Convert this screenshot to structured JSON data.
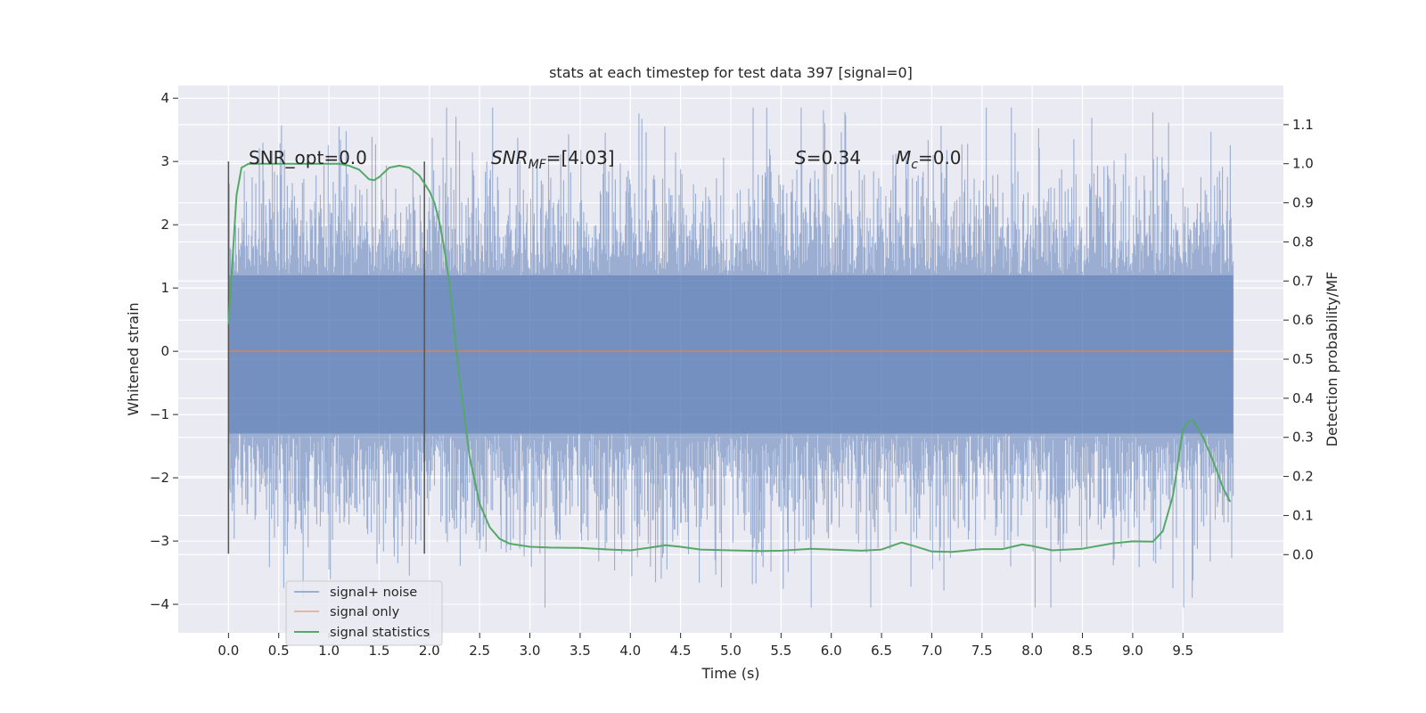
{
  "chart_data": {
    "type": "line",
    "title": "stats at each timestep for test data 397 [signal=0]",
    "xlabel": "Time (s)",
    "ylabel": "Whitened strain",
    "ylabel_right": "Detection probability/MF",
    "xlim": [
      -0.5,
      10.5
    ],
    "ylim": [
      -4.45,
      4.2
    ],
    "ylim_right": [
      -0.2,
      1.2
    ],
    "x_ticks": [
      "0.0",
      "0.5",
      "1.0",
      "1.5",
      "2.0",
      "2.5",
      "3.0",
      "3.5",
      "4.0",
      "4.5",
      "5.0",
      "5.5",
      "6.0",
      "6.5",
      "7.0",
      "7.5",
      "8.0",
      "8.5",
      "9.0",
      "9.5"
    ],
    "y_ticks": [
      "4",
      "3",
      "2",
      "1",
      "0",
      "−1",
      "−2",
      "−3",
      "−4"
    ],
    "y_ticks_right": [
      "1.1",
      "1.0",
      "0.9",
      "0.8",
      "0.7",
      "0.6",
      "0.5",
      "0.4",
      "0.3",
      "0.2",
      "0.1",
      "0.0"
    ],
    "grid": true,
    "legend_position": "bottom-left",
    "annotations": {
      "snr_opt": "SNR_opt=0.0",
      "snr_mf_main": "SNR",
      "snr_mf_sub": "MF",
      "snr_mf_value": "=[4.03]",
      "s_main": "S",
      "s_value": "=0.34",
      "mc_main": "M",
      "mc_sub": "c",
      "mc_value": "=0.0"
    },
    "series": [
      {
        "name": "signal+ noise",
        "color": "#4c72b0",
        "x_range": [
          0.0,
          10.0
        ],
        "core_band": [
          -1.3,
          1.2
        ],
        "max_excursion": 3.85,
        "min_excursion": -4.05
      },
      {
        "name": "signal only",
        "color": "#dd8452",
        "x": [
          0.0,
          10.0
        ],
        "y": [
          0.0,
          0.0
        ]
      },
      {
        "name": "signal statistics",
        "color": "#55a868",
        "axis": "right",
        "x": [
          0.0,
          0.08,
          0.13,
          0.2,
          0.3,
          0.5,
          0.7,
          0.9,
          1.0,
          1.1,
          1.2,
          1.3,
          1.4,
          1.45,
          1.5,
          1.6,
          1.7,
          1.8,
          1.9,
          2.0,
          2.05,
          2.1,
          2.15,
          2.2,
          2.3,
          2.4,
          2.5,
          2.6,
          2.7,
          2.8,
          3.0,
          3.2,
          3.5,
          3.8,
          4.0,
          4.2,
          4.35,
          4.5,
          4.7,
          5.0,
          5.3,
          5.5,
          5.8,
          6.0,
          6.3,
          6.5,
          6.6,
          6.7,
          6.8,
          7.0,
          7.2,
          7.5,
          7.7,
          7.9,
          8.0,
          8.2,
          8.5,
          8.8,
          9.0,
          9.2,
          9.3,
          9.4,
          9.5,
          9.55,
          9.6,
          9.7,
          9.8,
          9.9,
          9.97
        ],
        "y": [
          0.59,
          0.92,
          0.99,
          1.0,
          1.0,
          1.0,
          1.0,
          1.0,
          1.0,
          1.0,
          0.995,
          0.985,
          0.96,
          0.958,
          0.966,
          0.99,
          0.995,
          0.99,
          0.97,
          0.93,
          0.9,
          0.85,
          0.78,
          0.69,
          0.45,
          0.25,
          0.13,
          0.07,
          0.04,
          0.028,
          0.02,
          0.018,
          0.017,
          0.013,
          0.011,
          0.018,
          0.024,
          0.02,
          0.013,
          0.011,
          0.009,
          0.01,
          0.015,
          0.013,
          0.01,
          0.013,
          0.022,
          0.031,
          0.024,
          0.008,
          0.007,
          0.014,
          0.014,
          0.026,
          0.022,
          0.011,
          0.015,
          0.029,
          0.034,
          0.033,
          0.06,
          0.15,
          0.32,
          0.34,
          0.345,
          0.3,
          0.24,
          0.17,
          0.135
        ]
      }
    ],
    "vertical_markers": [
      0.0,
      1.95
    ],
    "vertical_marker_range": [
      -3.2,
      3.0
    ]
  }
}
